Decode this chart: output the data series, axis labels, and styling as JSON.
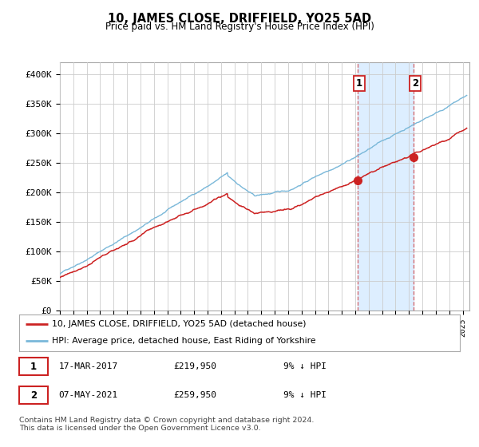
{
  "title": "10, JAMES CLOSE, DRIFFIELD, YO25 5AD",
  "subtitle": "Price paid vs. HM Land Registry's House Price Index (HPI)",
  "ylabel_ticks": [
    "£0",
    "£50K",
    "£100K",
    "£150K",
    "£200K",
    "£250K",
    "£300K",
    "£350K",
    "£400K"
  ],
  "ytick_values": [
    0,
    50000,
    100000,
    150000,
    200000,
    250000,
    300000,
    350000,
    400000
  ],
  "ylim": [
    0,
    420000
  ],
  "xlim_start": 1995.0,
  "xlim_end": 2025.5,
  "hpi_color": "#7ab8d9",
  "price_color": "#cc2222",
  "sale1_x": 2017.2,
  "sale1_y": 219950,
  "sale2_x": 2021.35,
  "sale2_y": 259950,
  "span_color": "#ddeeff",
  "legend_label1": "10, JAMES CLOSE, DRIFFIELD, YO25 5AD (detached house)",
  "legend_label2": "HPI: Average price, detached house, East Riding of Yorkshire",
  "footer": "Contains HM Land Registry data © Crown copyright and database right 2024.\nThis data is licensed under the Open Government Licence v3.0.",
  "table_row1": [
    "1",
    "17-MAR-2017",
    "£219,950",
    "9% ↓ HPI"
  ],
  "table_row2": [
    "2",
    "07-MAY-2021",
    "£259,950",
    "9% ↓ HPI"
  ],
  "background_color": "#ffffff",
  "grid_color": "#cccccc",
  "hpi_seed": 42,
  "price_seed": 77
}
